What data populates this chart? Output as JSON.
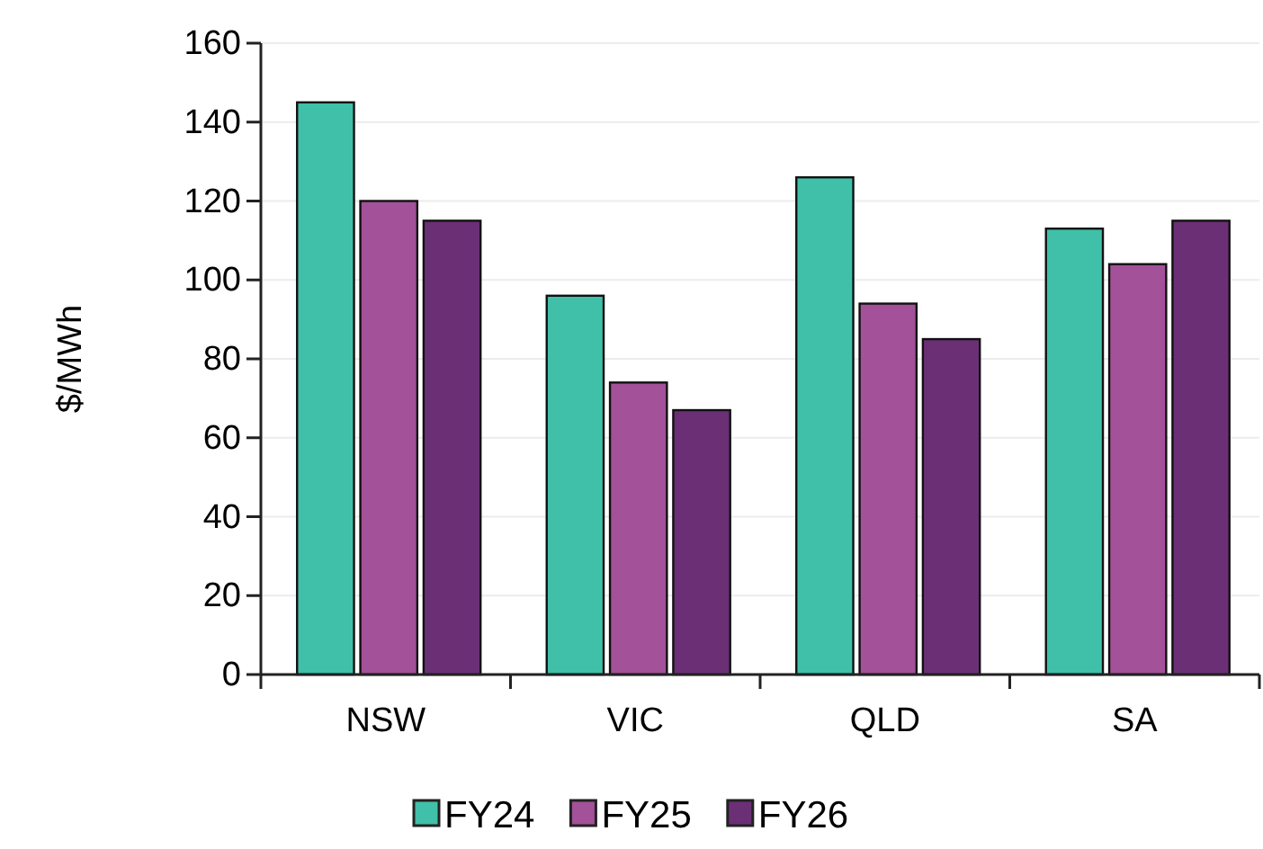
{
  "chart_data": {
    "type": "bar",
    "ylabel": "$/MWh",
    "categories": [
      "NSW",
      "VIC",
      "QLD",
      "SA"
    ],
    "series": [
      {
        "name": "FY24",
        "color": "#40c0a8",
        "values": [
          145,
          96,
          126,
          113
        ]
      },
      {
        "name": "FY25",
        "color": "#a35199",
        "values": [
          120,
          74,
          94,
          104
        ]
      },
      {
        "name": "FY26",
        "color": "#6b2f76",
        "values": [
          115,
          67,
          85,
          115
        ]
      }
    ],
    "ylim": [
      0,
      160
    ],
    "yticks": [
      0,
      20,
      40,
      60,
      80,
      100,
      120,
      140,
      160
    ],
    "grid": "y",
    "legend": "bottom"
  }
}
